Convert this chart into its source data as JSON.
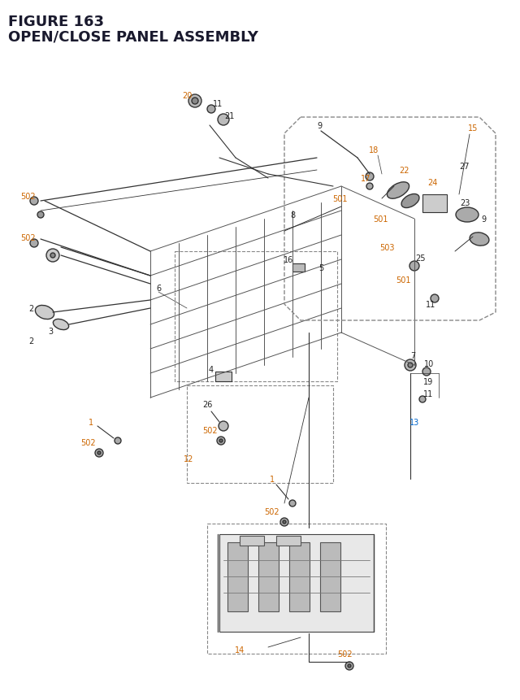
{
  "title_line1": "FIGURE 163",
  "title_line2": "OPEN/CLOSE PANEL ASSEMBLY",
  "title_color": "#1a1a2e",
  "title_fontsize": 13,
  "background_color": "#ffffff",
  "label_color_orange": "#cc6600",
  "label_color_blue": "#0066cc",
  "label_color_black": "#222222",
  "line_color": "#333333",
  "dash_color": "#555555",
  "part_color": "#444444",
  "figsize": [
    6.4,
    8.62
  ],
  "dpi": 100
}
